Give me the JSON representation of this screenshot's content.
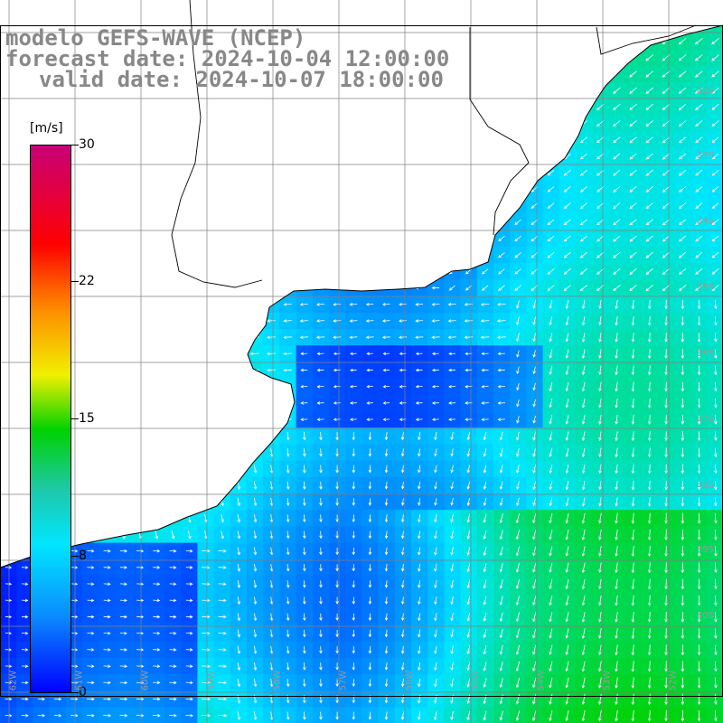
{
  "title": {
    "line1": "modelo GEFS-WAVE (NCEP)",
    "line2": "forecast date: 2024-10-04 12:00:00",
    "line3": "valid date: 2024-10-07 18:00:00"
  },
  "colorbar": {
    "unit": "[m/s]",
    "ticks": [
      "30",
      "22",
      "15",
      "8",
      "0"
    ]
  },
  "lat_labels": [
    "32S",
    "33S",
    "34S",
    "35S",
    "36S",
    "37S",
    "38S",
    "39S",
    "40S"
  ],
  "lon_labels": [
    "62W",
    "61W",
    "60W",
    "59W",
    "58W",
    "57W",
    "56W",
    "55W",
    "54W",
    "53W",
    "52W"
  ],
  "colors": {
    "land": "#ffffff",
    "grid": "#808080",
    "coast": "#000000",
    "arrow": "#ffffff",
    "speed_low": "#0000ff",
    "speed_mid": "#00e6ff",
    "speed_high": "#00d200"
  }
}
